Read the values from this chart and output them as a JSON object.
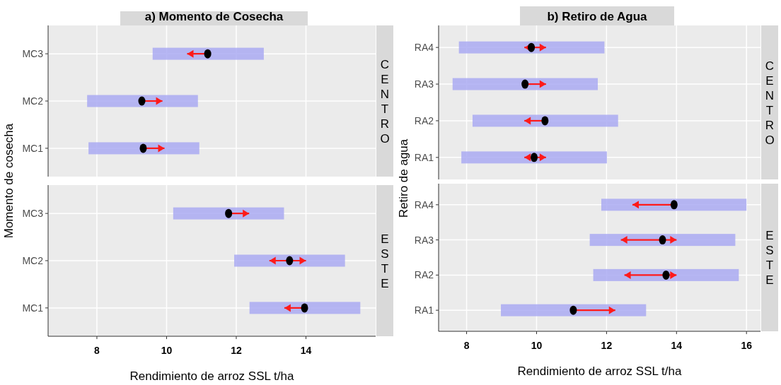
{
  "chart_data": [
    {
      "type": "bar",
      "orientation": "horizontal",
      "title": "a) Momento de Cosecha",
      "ylabel": "Momento de cosecha",
      "annotations": [
        "CENTRO"
      ],
      "categories": [
        "MC3",
        "MC2",
        "MC1"
      ],
      "xlim": [
        6.6,
        16
      ],
      "xticks": [
        8,
        10,
        12,
        14
      ],
      "grid": true,
      "tick_labels": "y",
      "series": [
        {
          "type": "bar",
          "color": "#aaaaf2",
          "base": [
            9.6,
            7.72,
            7.76
          ],
          "values": [
            3.19,
            3.18,
            3.18
          ]
        },
        {
          "type": "scatter",
          "color": "#000000",
          "x": [
            "MC3",
            "MC2",
            "MC1"
          ],
          "values": [
            11.18,
            9.29,
            9.33
          ],
          "errors": [
            [
              10.59,
              11.18
            ],
            [
              9.29,
              9.88
            ],
            [
              9.33,
              9.94
            ]
          ]
        }
      ]
    },
    {
      "type": "bar",
      "orientation": "horizontal",
      "xlabel": "Rendimiento de arroz SSL t/ha",
      "annotations": [
        "ESTE"
      ],
      "categories": [
        "MC3",
        "MC2",
        "MC1"
      ],
      "xlim": [
        6.6,
        16
      ],
      "xticks": [
        8,
        10,
        12,
        14
      ],
      "grid": true,
      "series": [
        {
          "type": "bar",
          "color": "#aaaaf2",
          "base": [
            10.19,
            11.94,
            12.38
          ],
          "values": [
            3.18,
            3.18,
            3.18
          ]
        },
        {
          "type": "scatter",
          "color": "#000000",
          "x": [
            "MC3",
            "MC2",
            "MC1"
          ],
          "values": [
            11.78,
            13.53,
            13.96
          ],
          "errors": [
            [
              11.78,
              12.37
            ],
            [
              12.95,
              14.0
            ],
            [
              13.38,
              13.96
            ]
          ]
        }
      ]
    },
    {
      "type": "bar",
      "orientation": "horizontal",
      "title": "b) Retiro de Agua",
      "ylabel": "Retiro de agua",
      "annotations": [
        "CENTRO"
      ],
      "categories": [
        "RA4",
        "RA3",
        "RA2",
        "RA1"
      ],
      "xlim": [
        7.2,
        16.4
      ],
      "xticks": [
        8,
        10,
        12,
        14,
        16
      ],
      "grid": true,
      "tick_labels": "y",
      "series": [
        {
          "type": "bar",
          "color": "#aaaaf2",
          "base": [
            7.78,
            7.6,
            8.17,
            7.85
          ],
          "values": [
            4.16,
            4.15,
            4.16,
            4.16
          ]
        },
        {
          "type": "scatter",
          "color": "#000000",
          "x": [
            "RA4",
            "RA3",
            "RA2",
            "RA1"
          ],
          "values": [
            9.85,
            9.67,
            10.24,
            9.93
          ],
          "errors": [
            [
              9.65,
              10.27
            ],
            [
              9.67,
              10.27
            ],
            [
              9.65,
              10.24
            ],
            [
              9.65,
              10.27
            ]
          ]
        }
      ]
    },
    {
      "type": "bar",
      "orientation": "horizontal",
      "xlabel": "Rendimiento de arroz SSL t/ha",
      "annotations": [
        "ESTE"
      ],
      "categories": [
        "RA4",
        "RA3",
        "RA2",
        "RA1"
      ],
      "xlim": [
        7.2,
        16.4
      ],
      "xticks": [
        8,
        10,
        12,
        14,
        16
      ],
      "grid": true,
      "series": [
        {
          "type": "bar",
          "color": "#aaaaf2",
          "base": [
            11.85,
            11.52,
            11.62,
            8.98
          ],
          "values": [
            4.15,
            4.16,
            4.16,
            4.15
          ]
        },
        {
          "type": "scatter",
          "color": "#000000",
          "x": [
            "RA4",
            "RA3",
            "RA2",
            "RA1"
          ],
          "values": [
            13.93,
            13.6,
            13.7,
            11.05
          ],
          "errors": [
            [
              12.74,
              13.93
            ],
            [
              12.41,
              14.0
            ],
            [
              12.51,
              14.0
            ],
            [
              11.05,
              12.25
            ]
          ]
        }
      ]
    }
  ]
}
